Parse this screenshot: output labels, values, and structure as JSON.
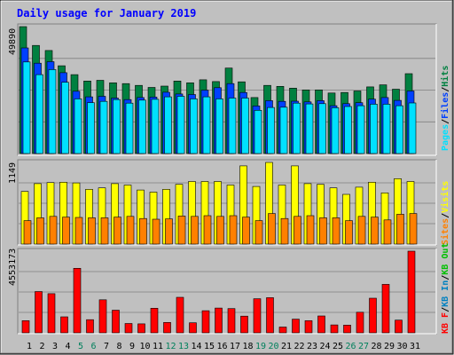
{
  "title": "Daily usage for January 2019",
  "colors": {
    "background": "#c0c0c0",
    "title": "#0000ff",
    "hits": "#008040",
    "files": "#0040ff",
    "pages": "#00e0ff",
    "visits": "#ffff00",
    "sites": "#ff8000",
    "kb_in": "#0080c0",
    "kb_out": "#00c000",
    "kb_f": "#ff0000",
    "weekend_label": "#00805c"
  },
  "chart_data": [
    {
      "type": "bar",
      "name": "hits-files-pages",
      "ymax_label": "49890",
      "ylim": [
        0,
        49890
      ],
      "legend": [
        "Pages",
        "Files",
        "Hits"
      ],
      "categories": [
        "1",
        "2",
        "3",
        "4",
        "5",
        "6",
        "7",
        "8",
        "9",
        "10",
        "11",
        "12",
        "13",
        "14",
        "15",
        "16",
        "17",
        "18",
        "19",
        "20",
        "21",
        "22",
        "23",
        "24",
        "25",
        "26",
        "27",
        "28",
        "29",
        "30",
        "31"
      ],
      "series": [
        {
          "name": "Hits",
          "values": [
            49890,
            42500,
            40500,
            34500,
            31000,
            28500,
            28800,
            27800,
            27500,
            26800,
            26000,
            26500,
            28500,
            27800,
            29000,
            28300,
            33600,
            28200,
            22000,
            26800,
            26400,
            25700,
            25000,
            25000,
            23800,
            24000,
            24600,
            26200,
            27000,
            25300,
            31400
          ]
        },
        {
          "name": "Files",
          "values": [
            41500,
            35500,
            36100,
            31800,
            24500,
            22300,
            22500,
            21800,
            21200,
            22000,
            22200,
            24100,
            23400,
            23200,
            24900,
            25900,
            27500,
            24000,
            18700,
            20800,
            20500,
            20600,
            20300,
            20800,
            18800,
            19600,
            20000,
            21400,
            22000,
            20900,
            24600
          ]
        },
        {
          "name": "Pages",
          "values": [
            36000,
            31000,
            33000,
            28000,
            21500,
            20000,
            20500,
            21200,
            19800,
            21000,
            21300,
            22300,
            22500,
            21500,
            22300,
            21500,
            21800,
            21800,
            17000,
            18100,
            18200,
            19800,
            19500,
            19600,
            18000,
            18500,
            18800,
            19400,
            19400,
            18800,
            19900
          ]
        }
      ]
    },
    {
      "type": "bar",
      "name": "visits-sites",
      "ymax_label": "1149",
      "ylim": [
        0,
        1149
      ],
      "legend": [
        "Sites",
        "Visits"
      ],
      "categories": [
        "1",
        "2",
        "3",
        "4",
        "5",
        "6",
        "7",
        "8",
        "9",
        "10",
        "11",
        "12",
        "13",
        "14",
        "15",
        "16",
        "17",
        "18",
        "19",
        "20",
        "21",
        "22",
        "23",
        "24",
        "25",
        "26",
        "27",
        "28",
        "29",
        "30",
        "31"
      ],
      "series": [
        {
          "name": "Visits",
          "values": [
            740,
            850,
            865,
            870,
            860,
            770,
            790,
            850,
            830,
            760,
            730,
            770,
            840,
            880,
            880,
            880,
            830,
            1100,
            810,
            1149,
            830,
            1100,
            850,
            840,
            790,
            700,
            800,
            870,
            720,
            920,
            880
          ]
        },
        {
          "name": "Sites",
          "values": [
            330,
            370,
            390,
            380,
            375,
            370,
            370,
            380,
            390,
            360,
            350,
            355,
            395,
            390,
            400,
            390,
            400,
            380,
            330,
            430,
            360,
            390,
            400,
            370,
            370,
            330,
            390,
            380,
            340,
            420,
            430
          ]
        }
      ]
    },
    {
      "type": "bar",
      "name": "kbytes",
      "ymax_label": "4553173",
      "ylim": [
        0,
        4553173
      ],
      "legend": [
        "KB F",
        "KB In",
        "KB Out"
      ],
      "categories": [
        "1",
        "2",
        "3",
        "4",
        "5",
        "6",
        "7",
        "8",
        "9",
        "10",
        "11",
        "12",
        "13",
        "14",
        "15",
        "16",
        "17",
        "18",
        "19",
        "20",
        "21",
        "22",
        "23",
        "24",
        "25",
        "26",
        "27",
        "28",
        "29",
        "30",
        "31"
      ],
      "series": [
        {
          "name": "KB F",
          "values": [
            680,
            2300,
            2180,
            890,
            3600,
            730,
            1840,
            1260,
            520,
            500,
            1370,
            580,
            1980,
            560,
            1230,
            1380,
            1350,
            930,
            1900,
            1960,
            320,
            760,
            680,
            940,
            440,
            430,
            1150,
            1930,
            2700,
            710,
            4553
          ]
        }
      ]
    }
  ],
  "weekend_days": [
    "5",
    "6",
    "12",
    "13",
    "19",
    "20",
    "26",
    "27"
  ]
}
